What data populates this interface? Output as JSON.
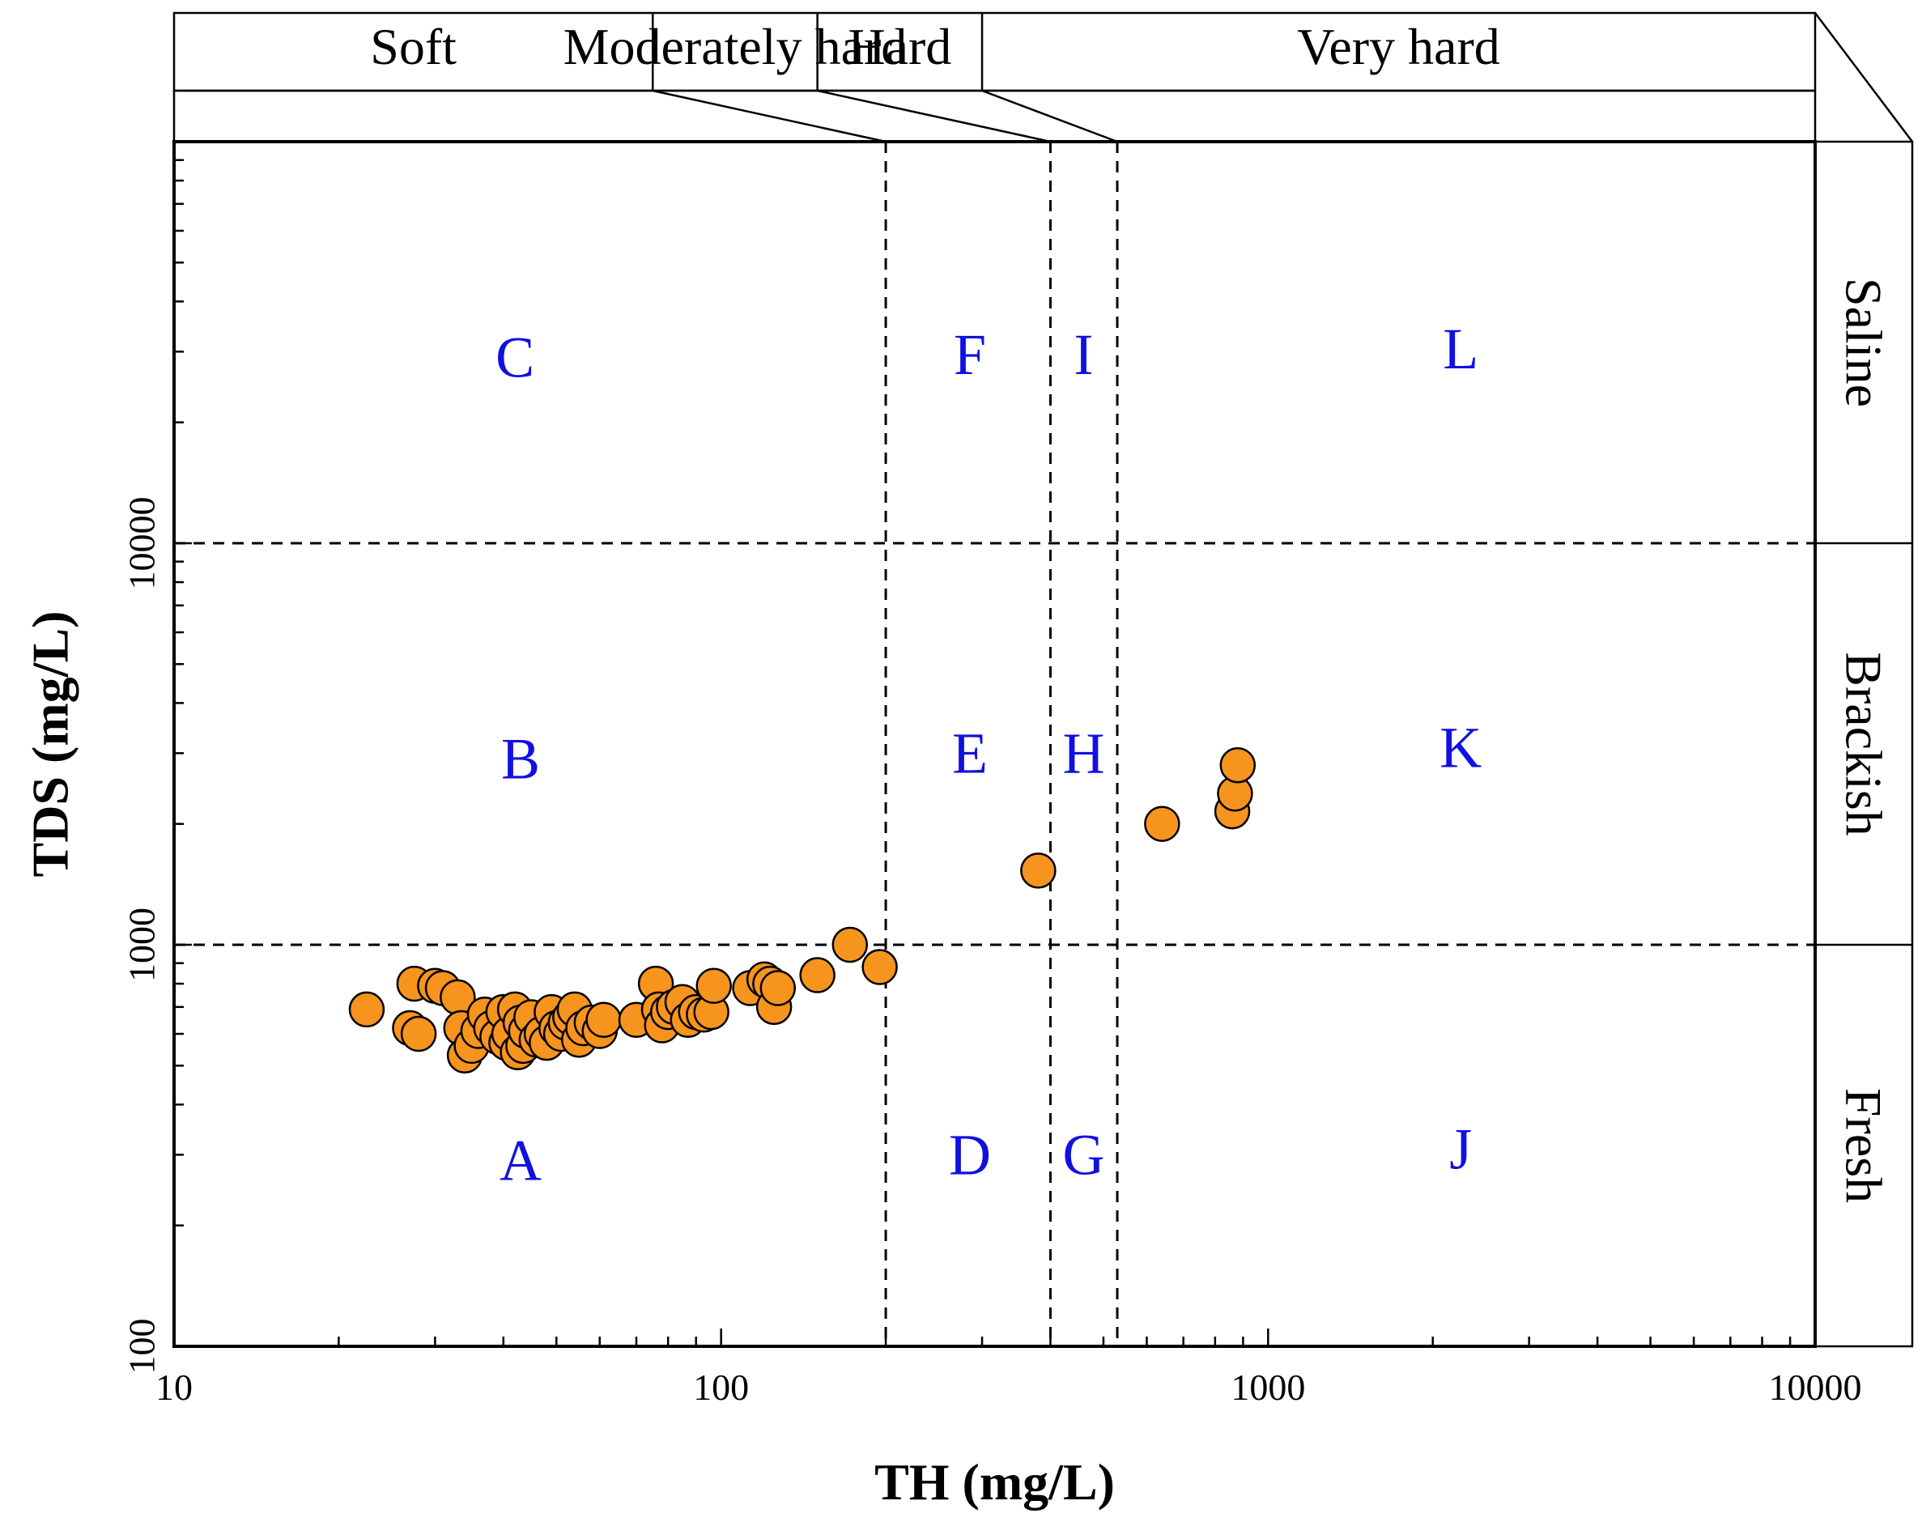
{
  "chart_data": {
    "type": "scatter",
    "xlabel": "TH (mg/L)",
    "ylabel": "TDS (mg/L)",
    "xscale": "log",
    "yscale": "log",
    "xlim": [
      10,
      10000
    ],
    "ylim": [
      100,
      100000
    ],
    "x_ticks": [
      "10",
      "100",
      "1000",
      "10000"
    ],
    "y_ticks": [
      "100",
      "1000",
      "10000"
    ],
    "grid": false,
    "marker_color": "#F7941D",
    "zone_label_color": "#1010E0",
    "hardness_bands": [
      {
        "label": "Soft",
        "min": 10,
        "max": 75
      },
      {
        "label": "Moderately hard",
        "min": 75,
        "max": 150
      },
      {
        "label": "Hard",
        "min": 150,
        "max": 300
      },
      {
        "label": "Very hard",
        "min": 300,
        "max": 10000
      }
    ],
    "hardness_divisions": [
      200,
      400,
      530
    ],
    "salinity_bands": [
      {
        "label": "Fresh",
        "min": 100,
        "max": 1000
      },
      {
        "label": "Brackish",
        "min": 1000,
        "max": 10000
      },
      {
        "label": "Saline",
        "min": 10000,
        "max": 100000
      }
    ],
    "salinity_divisions": [
      1000,
      10000
    ],
    "zones": [
      {
        "label": "A",
        "x": 43,
        "y": 290
      },
      {
        "label": "B",
        "x": 43,
        "y": 2900
      },
      {
        "label": "C",
        "x": 42,
        "y": 29000
      },
      {
        "label": "D",
        "x": 285,
        "y": 300
      },
      {
        "label": "E",
        "x": 285,
        "y": 3000
      },
      {
        "label": "F",
        "x": 285,
        "y": 29500
      },
      {
        "label": "G",
        "x": 460,
        "y": 300
      },
      {
        "label": "H",
        "x": 460,
        "y": 3000
      },
      {
        "label": "I",
        "x": 460,
        "y": 29500
      },
      {
        "label": "J",
        "x": 2250,
        "y": 310
      },
      {
        "label": "K",
        "x": 2250,
        "y": 3100
      },
      {
        "label": "L",
        "x": 2250,
        "y": 30500
      }
    ],
    "points": [
      {
        "x": 22.5,
        "y": 690
      },
      {
        "x": 27,
        "y": 620
      },
      {
        "x": 27.5,
        "y": 800
      },
      {
        "x": 28,
        "y": 600
      },
      {
        "x": 30,
        "y": 790
      },
      {
        "x": 31,
        "y": 780
      },
      {
        "x": 33,
        "y": 740
      },
      {
        "x": 33.5,
        "y": 620
      },
      {
        "x": 34,
        "y": 530
      },
      {
        "x": 35,
        "y": 560
      },
      {
        "x": 36,
        "y": 610
      },
      {
        "x": 37,
        "y": 670
      },
      {
        "x": 38,
        "y": 620
      },
      {
        "x": 39,
        "y": 590
      },
      {
        "x": 40,
        "y": 680
      },
      {
        "x": 40.5,
        "y": 570
      },
      {
        "x": 41,
        "y": 600
      },
      {
        "x": 42,
        "y": 690
      },
      {
        "x": 42.5,
        "y": 540
      },
      {
        "x": 43,
        "y": 640
      },
      {
        "x": 43.5,
        "y": 560
      },
      {
        "x": 44,
        "y": 610
      },
      {
        "x": 45,
        "y": 660
      },
      {
        "x": 46,
        "y": 580
      },
      {
        "x": 47,
        "y": 600
      },
      {
        "x": 48,
        "y": 570
      },
      {
        "x": 49,
        "y": 680
      },
      {
        "x": 50,
        "y": 620
      },
      {
        "x": 51,
        "y": 600
      },
      {
        "x": 52,
        "y": 640
      },
      {
        "x": 53,
        "y": 660
      },
      {
        "x": 54,
        "y": 690
      },
      {
        "x": 55,
        "y": 580
      },
      {
        "x": 56,
        "y": 620
      },
      {
        "x": 58,
        "y": 640
      },
      {
        "x": 60,
        "y": 610
      },
      {
        "x": 61,
        "y": 650
      },
      {
        "x": 70,
        "y": 650
      },
      {
        "x": 76,
        "y": 800
      },
      {
        "x": 77,
        "y": 690
      },
      {
        "x": 78,
        "y": 630
      },
      {
        "x": 80,
        "y": 680
      },
      {
        "x": 82,
        "y": 700
      },
      {
        "x": 85,
        "y": 720
      },
      {
        "x": 87,
        "y": 650
      },
      {
        "x": 90,
        "y": 680
      },
      {
        "x": 93,
        "y": 670
      },
      {
        "x": 96,
        "y": 680
      },
      {
        "x": 97,
        "y": 790
      },
      {
        "x": 113,
        "y": 780
      },
      {
        "x": 120,
        "y": 820
      },
      {
        "x": 123,
        "y": 800
      },
      {
        "x": 125,
        "y": 700
      },
      {
        "x": 127,
        "y": 780
      },
      {
        "x": 150,
        "y": 840
      },
      {
        "x": 172,
        "y": 1000
      },
      {
        "x": 195,
        "y": 880
      },
      {
        "x": 380,
        "y": 1530
      },
      {
        "x": 640,
        "y": 2000
      },
      {
        "x": 860,
        "y": 2150
      },
      {
        "x": 870,
        "y": 2380
      },
      {
        "x": 880,
        "y": 2800
      }
    ]
  }
}
